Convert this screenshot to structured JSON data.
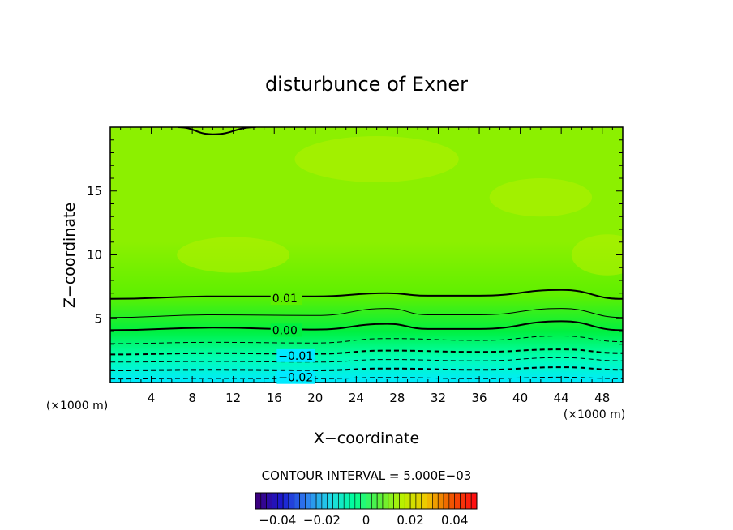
{
  "chart_data": {
    "type": "heatmap",
    "title": "disturbunce of Exner",
    "xlabel": "X−coordinate",
    "ylabel": "Z−coordinate",
    "x_unit": "(×1000 m)",
    "y_unit": "(×1000 m)",
    "xlim": [
      0,
      50
    ],
    "ylim": [
      0,
      20
    ],
    "x_ticks": [
      4,
      8,
      12,
      16,
      20,
      24,
      28,
      32,
      36,
      40,
      44,
      48
    ],
    "x_tick_labels": [
      "4",
      "8",
      "12",
      "16",
      "20",
      "24",
      "28",
      "32",
      "36",
      "40",
      "44",
      "48"
    ],
    "y_ticks": [
      5,
      10,
      15
    ],
    "y_tick_labels": [
      "5",
      "10",
      "15"
    ],
    "contour_interval_text": "CONTOUR INTERVAL = 5.000E−03",
    "contour_interval": 0.005,
    "contour_labels": [
      {
        "text": "0.01",
        "value": 0.01,
        "x": 15.8,
        "z": 6.6
      },
      {
        "text": "0.00",
        "value": 0.0,
        "x": 15.8,
        "z": 4.1
      },
      {
        "text": "−0.01",
        "value": -0.01,
        "x": 16.4,
        "z": 2.1
      },
      {
        "text": "−0.02",
        "value": -0.02,
        "x": 16.4,
        "z": 0.4
      }
    ],
    "contour_lines": [
      {
        "value": -0.025,
        "style": "dashed",
        "points": [
          [
            0,
            0.28
          ],
          [
            10,
            0.32
          ],
          [
            20,
            0.3
          ],
          [
            27,
            0.4
          ],
          [
            36,
            0.3
          ],
          [
            44,
            0.42
          ],
          [
            50,
            0.3
          ]
        ]
      },
      {
        "value": -0.02,
        "style": "dashed",
        "points": [
          [
            0,
            0.95
          ],
          [
            10,
            1.0
          ],
          [
            20,
            0.95
          ],
          [
            27,
            1.1
          ],
          [
            36,
            1.0
          ],
          [
            44,
            1.2
          ],
          [
            50,
            1.0
          ]
        ]
      },
      {
        "value": -0.015,
        "style": "dashed",
        "points": [
          [
            0,
            1.6
          ],
          [
            10,
            1.65
          ],
          [
            20,
            1.6
          ],
          [
            27,
            1.8
          ],
          [
            36,
            1.7
          ],
          [
            44,
            1.95
          ],
          [
            50,
            1.7
          ]
        ]
      },
      {
        "value": -0.01,
        "style": "dashed",
        "points": [
          [
            0,
            2.2
          ],
          [
            10,
            2.3
          ],
          [
            20,
            2.25
          ],
          [
            27,
            2.5
          ],
          [
            36,
            2.4
          ],
          [
            44,
            2.6
          ],
          [
            50,
            2.3
          ]
        ]
      },
      {
        "value": -0.005,
        "style": "dashed",
        "points": [
          [
            0,
            3.05
          ],
          [
            10,
            3.15
          ],
          [
            20,
            3.1
          ],
          [
            27,
            3.45
          ],
          [
            36,
            3.3
          ],
          [
            44,
            3.65
          ],
          [
            50,
            3.2
          ]
        ]
      },
      {
        "value": 0.0,
        "style": "solid",
        "points": [
          [
            0,
            4.1
          ],
          [
            10,
            4.3
          ],
          [
            20,
            4.15
          ],
          [
            27,
            4.6
          ],
          [
            31,
            4.2
          ],
          [
            36,
            4.2
          ],
          [
            44,
            4.8
          ],
          [
            50,
            4.1
          ]
        ]
      },
      {
        "value": 0.005,
        "style": "solid",
        "points": [
          [
            0,
            5.1
          ],
          [
            10,
            5.3
          ],
          [
            20,
            5.25
          ],
          [
            27,
            5.8
          ],
          [
            31,
            5.3
          ],
          [
            36,
            5.3
          ],
          [
            44,
            5.8
          ],
          [
            50,
            5.1
          ]
        ]
      },
      {
        "value": 0.01,
        "style": "solid",
        "points": [
          [
            0,
            6.55
          ],
          [
            10,
            6.75
          ],
          [
            20,
            6.75
          ],
          [
            27,
            7.0
          ],
          [
            31,
            6.8
          ],
          [
            36,
            6.8
          ],
          [
            44,
            7.25
          ],
          [
            50,
            6.55
          ]
        ]
      },
      {
        "value": 0.01,
        "style": "solid",
        "points": [
          [
            6.6,
            20
          ],
          [
            10,
            19.45
          ],
          [
            14.2,
            20
          ]
        ]
      }
    ],
    "colorbar": {
      "min": -0.05,
      "max": 0.05,
      "ticks": [
        -0.04,
        -0.02,
        0,
        0.02,
        0.04
      ],
      "tick_labels": [
        "−0.04",
        "−0.02",
        "0",
        "0.02",
        "0.04"
      ],
      "colors": [
        "#3b0080",
        "#1a1ad0",
        "#2f7ff0",
        "#20d8e8",
        "#00ff9a",
        "#55f040",
        "#b8f000",
        "#f0c800",
        "#f05a00",
        "#ff1010"
      ]
    },
    "field_colors": {
      "bottom": "#00eaff",
      "cyan_green": "#00ffb0",
      "green": "#00f040",
      "mid": "#5ef000",
      "upper": "#8cf000",
      "patch": "#b4f000"
    }
  }
}
